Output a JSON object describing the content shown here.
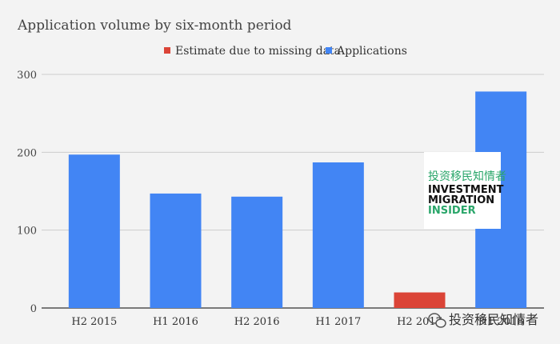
{
  "chart_data": {
    "type": "bar",
    "title": "Application volume by six-month period",
    "categories": [
      "H2 2015",
      "H1 2016",
      "H2 2016",
      "H1 2017",
      "H2 2017",
      "H1 2018"
    ],
    "series": [
      {
        "name": "Estimate due to missing data",
        "color": "#db4437",
        "values": [
          null,
          null,
          null,
          null,
          20,
          null
        ]
      },
      {
        "name": "Applications",
        "color": "#4285f4",
        "values": [
          197,
          147,
          143,
          187,
          null,
          278
        ]
      }
    ],
    "yticks": [
      0,
      100,
      200,
      300
    ],
    "ylim": [
      0,
      300
    ],
    "grid": true,
    "legend_position": "top"
  },
  "watermark": {
    "cn": "投资移民知情者",
    "line1": "INVESTMENT",
    "line2": "MIGRATION",
    "line3": "INSIDER"
  },
  "wechat": {
    "icon": "wechat-icon",
    "label": "投资移民知情者"
  }
}
